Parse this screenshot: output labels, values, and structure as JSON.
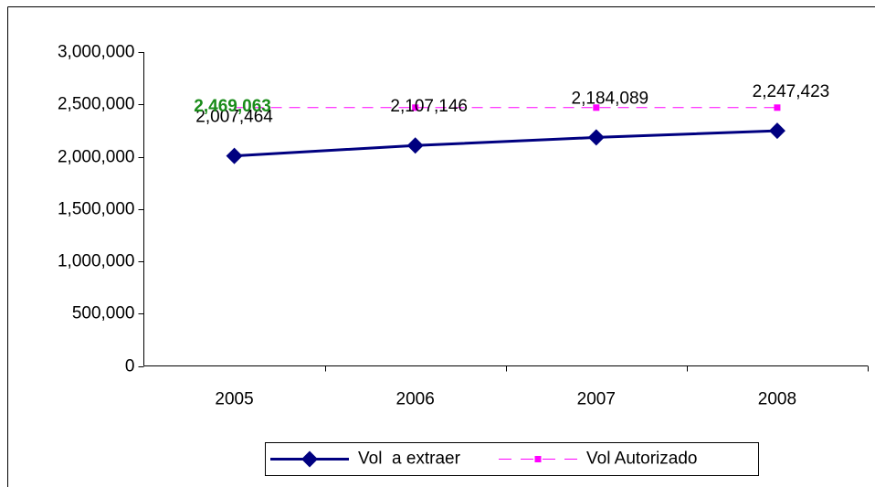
{
  "chart_data": {
    "type": "line",
    "categories": [
      "2005",
      "2006",
      "2007",
      "2008"
    ],
    "series": [
      {
        "name": "Vol  a extraer",
        "color": "#000080",
        "values": [
          2007464,
          2107146,
          2184089,
          2247423
        ],
        "value_labels": [
          "2,007,464",
          "2,107,146",
          "2,184,089",
          "2,247,423"
        ]
      },
      {
        "name": "Vol Autorizado",
        "color": "#ff00ff",
        "values": [
          2469063,
          2469063,
          2469063,
          2469063
        ],
        "value_labels": [
          "2,469,063",
          null,
          null,
          null
        ]
      }
    ],
    "ylim": [
      0,
      3000000
    ],
    "yticks": [
      0,
      {
        "value": 500000,
        "label": "500,000"
      },
      {
        "value": 1000000,
        "label": "1,000,000"
      },
      {
        "value": 1500000,
        "label": "1,500,000"
      },
      {
        "value": 2000000,
        "label": "2,000,000"
      },
      {
        "value": 2500000,
        "label": "2,500,000"
      },
      {
        "value": 3000000,
        "label": "3,000,000"
      }
    ],
    "grid": false,
    "legend": "bottom"
  }
}
